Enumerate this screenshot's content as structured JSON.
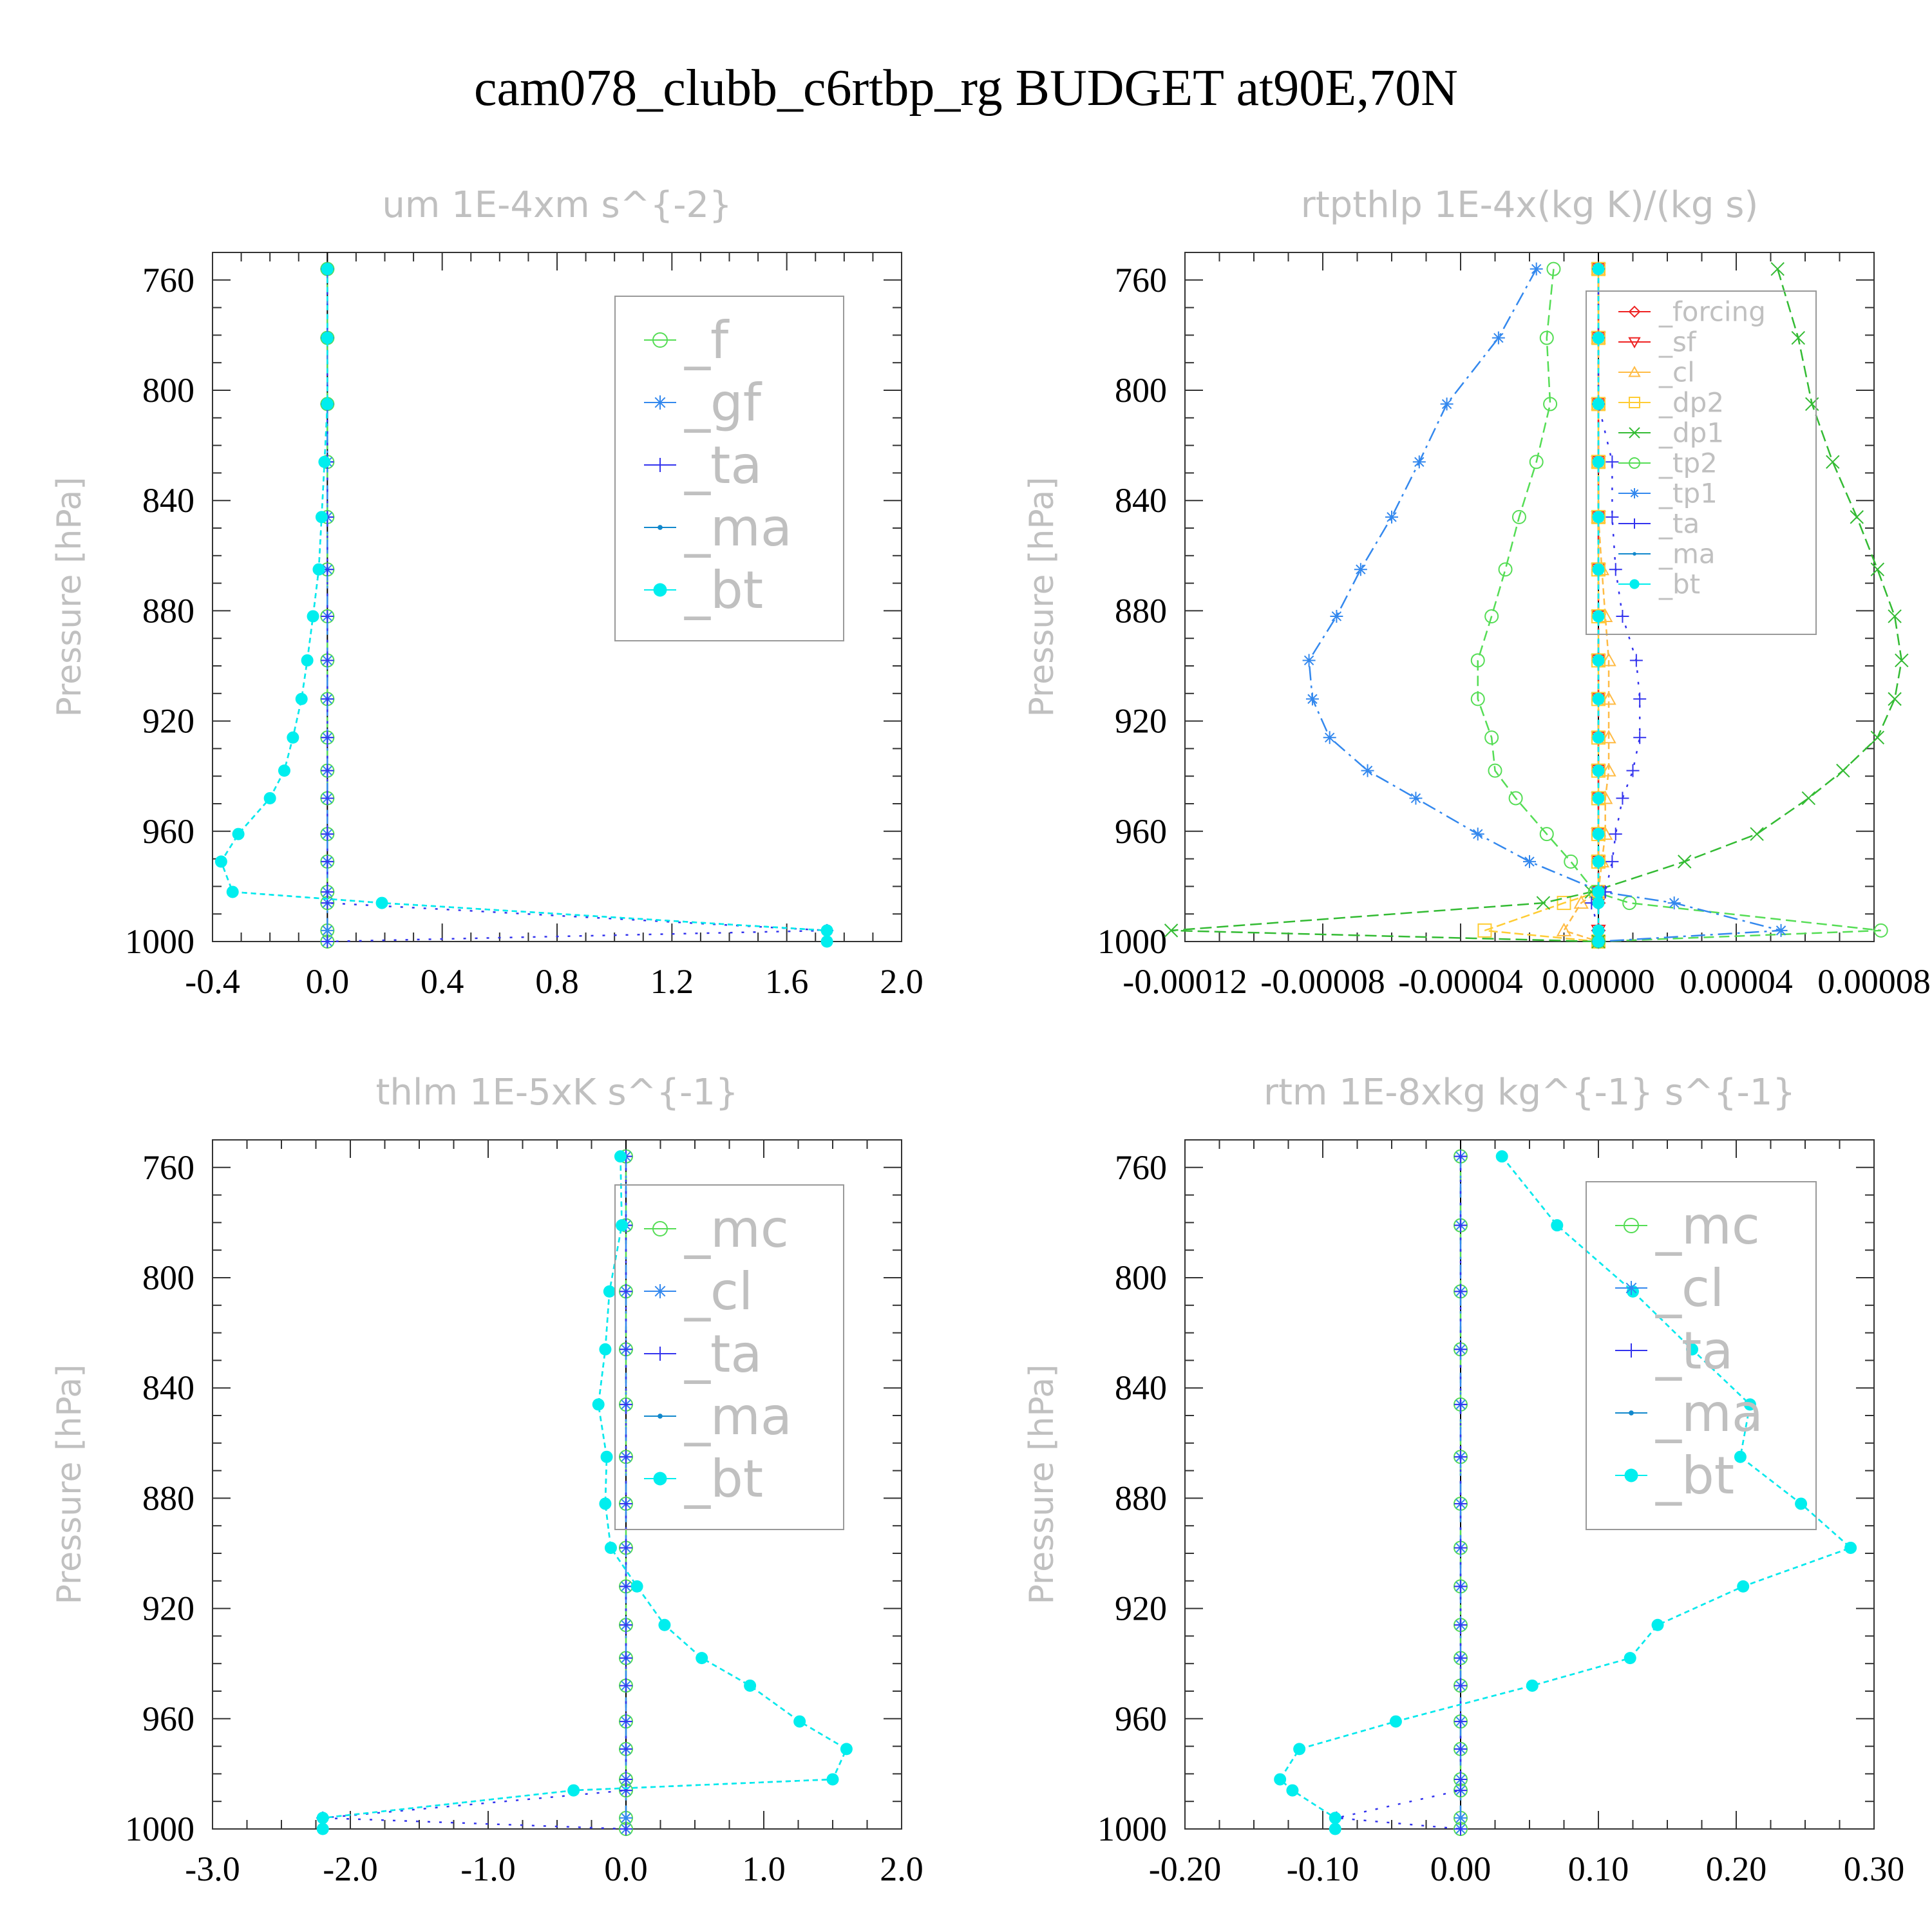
{
  "title": "cam078_clubb_c6rtbp_rg  BUDGET at90E,70N",
  "colors": {
    "f": "#55dd55",
    "gf": "#3388ee",
    "ta": "#3333ee",
    "ma": "#1188cc",
    "bt": "#00eeee",
    "forcing": "#ee2222",
    "sf": "#ee2222",
    "cl": "#ffbb44",
    "dp2": "#ffcc33",
    "dp1": "#33bb33",
    "tp2": "#55dd55",
    "tp1": "#3388ee",
    "mc": "#55dd55",
    "cl_b": "#3388ee"
  },
  "chart_data": [
    {
      "type": "line",
      "title": "um   1E-4xm s^{-2}",
      "ylabel": "Pressure [hPa]",
      "xlim": [
        -0.4,
        2.0
      ],
      "ylim": [
        750,
        1000
      ],
      "xticks": [
        "-0.4",
        "0.0",
        "0.4",
        "0.8",
        "1.2",
        "1.6",
        "2.0"
      ],
      "yticks": [
        "760",
        "800",
        "840",
        "880",
        "920",
        "960",
        "1000"
      ],
      "pressure": [
        756,
        781,
        805,
        826,
        846,
        865,
        882,
        898,
        912,
        926,
        938,
        948,
        961,
        971,
        982,
        986,
        996,
        1000
      ],
      "legend": {
        "place": "upper-right",
        "size": "large",
        "labels": [
          "_f",
          "_gf",
          "_ta",
          "_ma",
          "_bt"
        ]
      },
      "series": [
        {
          "name": "_f",
          "color": "#55dd55",
          "marker": "circle",
          "values": [
            0,
            0,
            0,
            0,
            0,
            0,
            0,
            0,
            0,
            0,
            0,
            0,
            0,
            0,
            0,
            0,
            0,
            0
          ]
        },
        {
          "name": "_gf",
          "color": "#3388ee",
          "marker": "star",
          "values": [
            0,
            0,
            0,
            0,
            0,
            0,
            0,
            0,
            0,
            0,
            0,
            0,
            0,
            0,
            0,
            0,
            0,
            0
          ]
        },
        {
          "name": "_ta",
          "color": "#3333ee",
          "marker": "plus",
          "values": [
            0,
            0,
            0,
            0,
            0,
            0,
            0,
            0,
            0,
            0,
            0,
            0,
            0,
            0,
            0,
            0,
            1.74,
            0
          ]
        },
        {
          "name": "_ma",
          "color": "#1188cc",
          "marker": "dot",
          "values": [
            0,
            0,
            0,
            -0.01,
            -0.02,
            -0.03,
            -0.05,
            -0.07,
            -0.09,
            -0.12,
            -0.15,
            -0.2,
            -0.31,
            -0.37,
            -0.33,
            0.19,
            1.74,
            1.74
          ]
        },
        {
          "name": "_bt",
          "color": "#00eeee",
          "marker": "filled",
          "values": [
            0,
            0,
            0,
            -0.01,
            -0.02,
            -0.03,
            -0.05,
            -0.07,
            -0.09,
            -0.12,
            -0.15,
            -0.2,
            -0.31,
            -0.37,
            -0.33,
            0.19,
            1.74,
            1.74
          ]
        }
      ]
    },
    {
      "type": "line",
      "title": "rtpthlp   1E-4x(kg K)/(kg s)",
      "ylabel": "Pressure [hPa]",
      "xlim": [
        -0.00012,
        8e-05
      ],
      "ylim": [
        750,
        1000
      ],
      "xticks": [
        "-0.00012",
        "-0.00008",
        "-0.00004",
        "0.00000",
        "0.00004",
        "0.00008"
      ],
      "yticks": [
        "760",
        "800",
        "840",
        "880",
        "920",
        "960",
        "1000"
      ],
      "pressure": [
        756,
        781,
        805,
        826,
        846,
        865,
        882,
        898,
        912,
        926,
        938,
        948,
        961,
        971,
        982,
        986,
        996,
        1000
      ],
      "legend": {
        "place": "upper-right",
        "size": "small",
        "labels": [
          "_forcing",
          "_sf",
          "_cl",
          "_dp2",
          "_dp1",
          "_tp2",
          "_tp1",
          "_ta",
          "_ma",
          "_bt"
        ]
      },
      "series": [
        {
          "name": "_forcing",
          "color": "#ee2222",
          "marker": "diamond",
          "values": [
            0,
            0,
            0,
            0,
            0,
            0,
            0,
            0,
            0,
            0,
            0,
            0,
            0,
            0,
            0,
            0,
            0,
            0
          ]
        },
        {
          "name": "_sf",
          "color": "#ee2222",
          "marker": "triangle-down",
          "values": [
            0,
            0,
            0,
            0,
            0,
            0,
            0,
            0,
            0,
            0,
            0,
            0,
            0,
            0,
            0,
            0,
            0,
            0
          ]
        },
        {
          "name": "_cl",
          "color": "#ffbb44",
          "marker": "triangle",
          "values": [
            0,
            0,
            0,
            0,
            0,
            1e-06,
            2e-06,
            3e-06,
            3e-06,
            3e-06,
            3e-06,
            2e-06,
            2e-06,
            1e-06,
            0,
            -5e-06,
            -1e-05,
            0
          ]
        },
        {
          "name": "_dp2",
          "color": "#ffcc33",
          "marker": "square",
          "values": [
            0,
            0,
            0,
            0,
            0,
            0,
            0,
            0,
            0,
            0,
            0,
            0,
            0,
            0,
            0,
            -1e-05,
            -3.3e-05,
            0
          ]
        },
        {
          "name": "_dp1",
          "color": "#33bb33",
          "marker": "x",
          "values": [
            5.2e-05,
            5.8e-05,
            6.2e-05,
            6.8e-05,
            7.5e-05,
            8.1e-05,
            8.6e-05,
            8.8e-05,
            8.6e-05,
            8.1e-05,
            7.1e-05,
            6.1e-05,
            4.6e-05,
            2.5e-05,
            -2e-06,
            -1.6e-05,
            -0.000124,
            0
          ]
        },
        {
          "name": "_tp2",
          "color": "#55dd55",
          "marker": "circle",
          "values": [
            -1.3e-05,
            -1.5e-05,
            -1.4e-05,
            -1.8e-05,
            -2.3e-05,
            -2.7e-05,
            -3.1e-05,
            -3.5e-05,
            -3.5e-05,
            -3.1e-05,
            -3e-05,
            -2.4e-05,
            -1.5e-05,
            -8e-06,
            -1e-06,
            9e-06,
            8.2e-05,
            0
          ]
        },
        {
          "name": "_tp1",
          "color": "#3388ee",
          "marker": "star",
          "values": [
            -1.8e-05,
            -2.9e-05,
            -4.4e-05,
            -5.2e-05,
            -6e-05,
            -6.9e-05,
            -7.6e-05,
            -8.4e-05,
            -8.3e-05,
            -7.8e-05,
            -6.7e-05,
            -5.3e-05,
            -3.5e-05,
            -2e-05,
            1e-06,
            2.2e-05,
            5.3e-05,
            0
          ]
        },
        {
          "name": "_ta",
          "color": "#3333ee",
          "marker": "plus",
          "values": [
            0,
            0,
            0,
            4e-06,
            4e-06,
            5e-06,
            7e-06,
            1.1e-05,
            1.2e-05,
            1.2e-05,
            1e-05,
            7e-06,
            5e-06,
            4e-06,
            2e-06,
            -2e-06,
            0,
            0
          ]
        },
        {
          "name": "_ma",
          "color": "#1188cc",
          "marker": "dot",
          "values": [
            0,
            0,
            0,
            0,
            0,
            0,
            0,
            0,
            0,
            0,
            0,
            0,
            0,
            0,
            0,
            0,
            0,
            0
          ]
        },
        {
          "name": "_bt",
          "color": "#00eeee",
          "marker": "filled",
          "values": [
            0,
            0,
            0,
            0,
            0,
            0,
            0,
            0,
            0,
            0,
            0,
            0,
            0,
            0,
            0,
            0,
            0,
            0
          ]
        }
      ]
    },
    {
      "type": "line",
      "title": "thlm   1E-5xK s^{-1}",
      "ylabel": "Pressure [hPa]",
      "xlim": [
        -3.0,
        2.0
      ],
      "ylim": [
        750,
        1000
      ],
      "xticks": [
        "-3.0",
        "-2.0",
        "-1.0",
        "0.0",
        "1.0",
        "2.0"
      ],
      "yticks": [
        "760",
        "800",
        "840",
        "880",
        "920",
        "960",
        "1000"
      ],
      "pressure": [
        756,
        781,
        805,
        826,
        846,
        865,
        882,
        898,
        912,
        926,
        938,
        948,
        961,
        971,
        982,
        986,
        996,
        1000
      ],
      "legend": {
        "place": "upper-right",
        "size": "large",
        "labels": [
          "_mc",
          "_cl",
          "_ta",
          "_ma",
          "_bt"
        ]
      },
      "series": [
        {
          "name": "_mc",
          "color": "#55dd55",
          "marker": "circle",
          "values": [
            0,
            0,
            0,
            0,
            0,
            0,
            0,
            0,
            0,
            0,
            0,
            0,
            0,
            0,
            0,
            0,
            0,
            0
          ]
        },
        {
          "name": "_cl",
          "color": "#3388ee",
          "marker": "star",
          "values": [
            0,
            0,
            0,
            0,
            0,
            0,
            0,
            0,
            0,
            0,
            0,
            0,
            0,
            0,
            0,
            0,
            0,
            0
          ]
        },
        {
          "name": "_ta",
          "color": "#3333ee",
          "marker": "plus",
          "values": [
            0,
            0,
            0,
            0,
            0,
            0,
            0,
            0,
            0,
            0,
            0,
            0,
            0,
            0,
            0,
            0,
            -2.2,
            0
          ]
        },
        {
          "name": "_ma",
          "color": "#1188cc",
          "marker": "dot",
          "values": [
            -0.04,
            -0.03,
            -0.12,
            -0.15,
            -0.2,
            -0.14,
            -0.15,
            -0.11,
            0.08,
            0.28,
            0.55,
            0.9,
            1.26,
            1.6,
            1.5,
            -0.38,
            -2.2,
            -2.2
          ]
        },
        {
          "name": "_bt",
          "color": "#00eeee",
          "marker": "filled",
          "values": [
            -0.04,
            -0.03,
            -0.12,
            -0.15,
            -0.2,
            -0.14,
            -0.15,
            -0.11,
            0.08,
            0.28,
            0.55,
            0.9,
            1.26,
            1.6,
            1.5,
            -0.38,
            -2.2,
            -2.2
          ]
        }
      ]
    },
    {
      "type": "line",
      "title": "rtm   1E-8xkg kg^{-1} s^{-1}",
      "ylabel": "Pressure [hPa]",
      "xlim": [
        -0.2,
        0.3
      ],
      "ylim": [
        750,
        1000
      ],
      "xticks": [
        "-0.20",
        "-0.10",
        "0.00",
        "0.10",
        "0.20",
        "0.30"
      ],
      "yticks": [
        "760",
        "800",
        "840",
        "880",
        "920",
        "960",
        "1000"
      ],
      "pressure": [
        756,
        781,
        805,
        826,
        846,
        865,
        882,
        898,
        912,
        926,
        938,
        948,
        961,
        971,
        982,
        986,
        996,
        1000
      ],
      "legend": {
        "place": "upper-right",
        "size": "large",
        "labels": [
          "_mc",
          "_cl",
          "_ta",
          "_ma",
          "_bt"
        ]
      },
      "series": [
        {
          "name": "_mc",
          "color": "#55dd55",
          "marker": "circle",
          "values": [
            0,
            0,
            0,
            0,
            0,
            0,
            0,
            0,
            0,
            0,
            0,
            0,
            0,
            0,
            0,
            0,
            0,
            0
          ]
        },
        {
          "name": "_cl",
          "color": "#3388ee",
          "marker": "star",
          "values": [
            0,
            0,
            0,
            0,
            0,
            0,
            0,
            0,
            0,
            0,
            0,
            0,
            0,
            0,
            0,
            0,
            0,
            0
          ]
        },
        {
          "name": "_ta",
          "color": "#3333ee",
          "marker": "plus",
          "values": [
            0,
            0,
            0,
            0,
            0,
            0,
            0,
            0,
            0,
            0,
            0,
            0,
            0,
            0,
            0,
            0,
            -0.09,
            0
          ]
        },
        {
          "name": "_ma",
          "color": "#1188cc",
          "marker": "dot",
          "values": [
            0.03,
            0.07,
            0.125,
            0.168,
            0.21,
            0.203,
            0.247,
            0.283,
            0.205,
            0.143,
            0.123,
            0.052,
            -0.047,
            -0.117,
            -0.131,
            -0.122,
            -0.091,
            -0.091
          ]
        },
        {
          "name": "_bt",
          "color": "#00eeee",
          "marker": "filled",
          "values": [
            0.03,
            0.07,
            0.125,
            0.168,
            0.21,
            0.203,
            0.247,
            0.283,
            0.205,
            0.143,
            0.123,
            0.052,
            -0.047,
            -0.117,
            -0.131,
            -0.122,
            -0.091,
            -0.091
          ]
        }
      ]
    }
  ]
}
